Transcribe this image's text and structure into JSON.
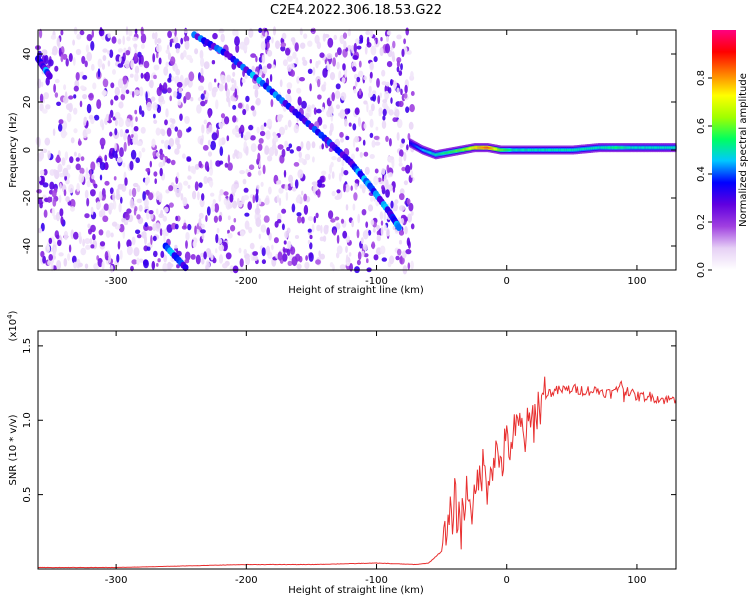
{
  "title": "C2E4.2022.306.18.53.G22",
  "chart_data": [
    {
      "type": "heatmap",
      "xlabel": "Height of straight line (km)",
      "ylabel": "Frequency (Hz)",
      "xlim": [
        -360,
        130
      ],
      "ylim": [
        -50,
        50
      ],
      "x_ticks": [
        -300,
        -200,
        -100,
        0,
        100
      ],
      "x_tick_labels": [
        "-300",
        "-200",
        "-100",
        "0",
        "100"
      ],
      "y_ticks": [
        -40,
        -20,
        0,
        20,
        40
      ],
      "y_tick_labels": [
        "-40",
        "-20",
        "0",
        "20",
        "40"
      ],
      "noise_region_x": [
        -360,
        -72
      ],
      "tracks": [
        {
          "x": [
            -240,
            -215,
            -190,
            -165,
            -140,
            -120,
            -105,
            -90,
            -82
          ],
          "y": [
            48,
            40,
            29,
            17,
            5,
            -5,
            -15,
            -26,
            -33
          ]
        },
        {
          "x": [
            -360,
            -350
          ],
          "y": [
            38,
            30
          ]
        },
        {
          "x": [
            -262,
            -245
          ],
          "y": [
            -40,
            -50
          ]
        }
      ],
      "ridge": {
        "x": [
          -75,
          -65,
          -55,
          -45,
          -35,
          -25,
          -15,
          -5,
          5,
          15,
          30,
          50,
          70,
          85,
          95,
          110,
          130
        ],
        "y": [
          3,
          0,
          -2,
          -1,
          0,
          1,
          1,
          0,
          0,
          0,
          0,
          0,
          1,
          1,
          1,
          1,
          1
        ],
        "amplitude": [
          0.35,
          0.45,
          0.5,
          0.55,
          0.6,
          0.75,
          0.85,
          0.6,
          0.5,
          0.5,
          0.5,
          0.5,
          0.5,
          0.55,
          0.5,
          0.5,
          0.5
        ]
      },
      "grid": false
    },
    {
      "type": "bar",
      "colorbar": true,
      "label": "Normalized spectral amplitude",
      "range": [
        0,
        1
      ],
      "ticks": [
        0.0,
        0.2,
        0.4,
        0.6,
        0.8
      ],
      "tick_labels": [
        "0.0",
        "0.2",
        "0.4",
        "0.6",
        "0.8"
      ],
      "colormap": [
        "#ffffff",
        "#e6d0f5",
        "#a040e0",
        "#6000e0",
        "#0000ff",
        "#00c8ff",
        "#00ff60",
        "#a0ff00",
        "#ffff00",
        "#ff8000",
        "#ff0000",
        "#ff0080"
      ]
    },
    {
      "type": "line",
      "xlabel": "Height of straight line (km)",
      "ylabel": "SNR (10 * v/v)",
      "y_scale_label": "(x10",
      "y_scale_exp": "4",
      "y_scale_close": ")",
      "xlim": [
        -360,
        130
      ],
      "ylim": [
        0,
        1.6
      ],
      "x_ticks": [
        -300,
        -200,
        -100,
        0,
        100
      ],
      "x_tick_labels": [
        "-300",
        "-200",
        "-100",
        "0",
        "100"
      ],
      "y_ticks": [
        0.5,
        1.0,
        1.5
      ],
      "y_tick_labels": [
        "0.5",
        "1.0",
        "1.5"
      ],
      "series": [
        {
          "color": "#e83030",
          "x": [
            -360,
            -300,
            -250,
            -200,
            -150,
            -100,
            -70,
            -60,
            -50,
            -45,
            -40,
            -35,
            -30,
            -25,
            -20,
            -15,
            -10,
            -5,
            0,
            5,
            10,
            15,
            20,
            25,
            30,
            40,
            50,
            60,
            70,
            80,
            85,
            88,
            90,
            92,
            95,
            100,
            110,
            120,
            130
          ],
          "y": [
            0.01,
            0.01,
            0.02,
            0.03,
            0.03,
            0.04,
            0.03,
            0.04,
            0.12,
            0.25,
            0.45,
            0.3,
            0.55,
            0.4,
            0.7,
            0.6,
            0.78,
            0.72,
            0.82,
            0.88,
            0.95,
            0.9,
            1.0,
            1.1,
            1.18,
            1.2,
            1.21,
            1.2,
            1.2,
            1.18,
            1.2,
            1.28,
            1.15,
            1.22,
            1.18,
            1.16,
            1.16,
            1.14,
            1.14
          ]
        }
      ],
      "grid": false
    }
  ]
}
